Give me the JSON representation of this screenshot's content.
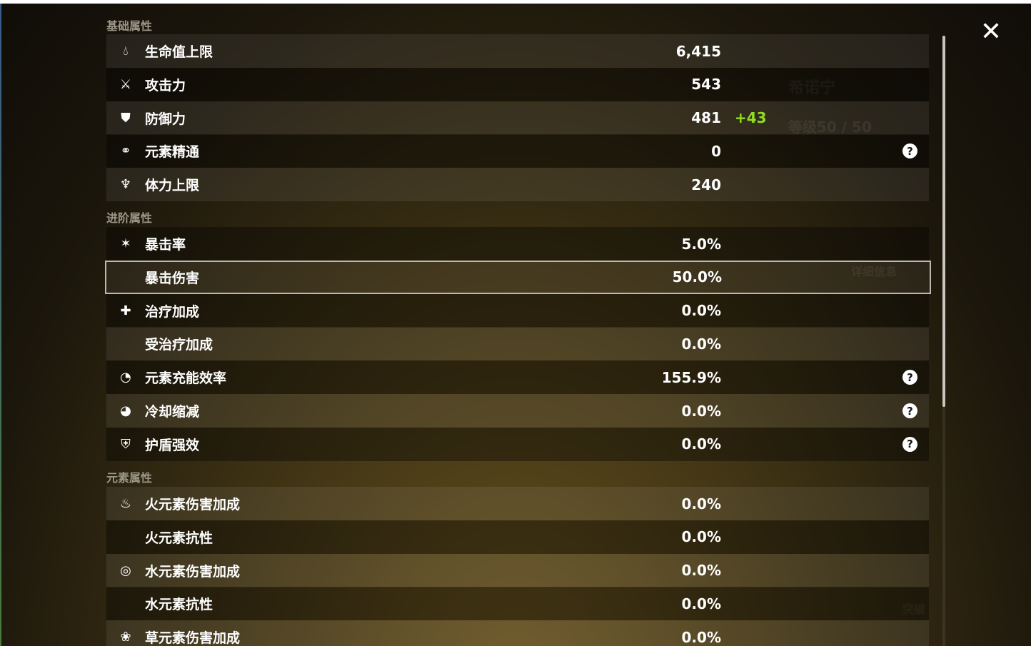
{
  "sections": {
    "basic": "基础属性",
    "advanced": "进阶属性",
    "elemental": "元素属性"
  },
  "basic": [
    {
      "icon": "hp-drop-icon",
      "label": "生命值上限",
      "value": "6,415"
    },
    {
      "icon": "sword-icon",
      "label": "攻击力",
      "value": "543"
    },
    {
      "icon": "shield-icon",
      "label": "防御力",
      "value": "481",
      "bonus": "+43"
    },
    {
      "icon": "elemental-mastery-icon",
      "label": "元素精通",
      "value": "0",
      "help": "?"
    },
    {
      "icon": "stamina-icon",
      "label": "体力上限",
      "value": "240"
    }
  ],
  "advanced": [
    {
      "icon": "crit-rate-icon",
      "label": "暴击率",
      "value": "5.0%"
    },
    {
      "icon": "",
      "label": "暴击伤害",
      "value": "50.0%"
    },
    {
      "icon": "healing-cross-icon",
      "label": "治疗加成",
      "value": "0.0%"
    },
    {
      "icon": "",
      "label": "受治疗加成",
      "value": "0.0%"
    },
    {
      "icon": "energy-recharge-icon",
      "label": "元素充能效率",
      "value": "155.9%",
      "help": "?"
    },
    {
      "icon": "cooldown-icon",
      "label": "冷却缩减",
      "value": "0.0%",
      "help": "?"
    },
    {
      "icon": "shield-strength-icon",
      "label": "护盾强效",
      "value": "0.0%",
      "help": "?"
    }
  ],
  "elemental": [
    {
      "icon": "pyro-icon",
      "label": "火元素伤害加成",
      "value": "0.0%"
    },
    {
      "icon": "",
      "label": "火元素抗性",
      "value": "0.0%"
    },
    {
      "icon": "hydro-icon",
      "label": "水元素伤害加成",
      "value": "0.0%"
    },
    {
      "icon": "",
      "label": "水元素抗性",
      "value": "0.0%"
    },
    {
      "icon": "dendro-icon",
      "label": "草元素伤害加成",
      "value": "0.0%"
    }
  ],
  "background": {
    "character_name": "希诺宁",
    "level": "等级50 / 50",
    "details_button": "详细信息",
    "ascend_button": "突破"
  },
  "colors": {
    "bonus": "#8fe01e",
    "selected_border": "#bdb8ad"
  }
}
